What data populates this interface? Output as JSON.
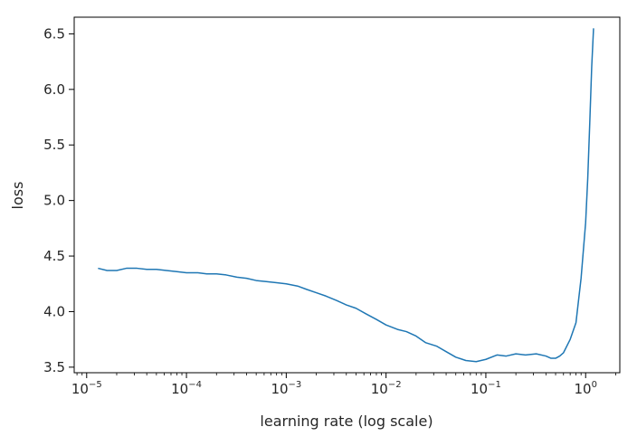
{
  "chart_data": {
    "type": "line",
    "xlabel": "learning rate (log scale)",
    "ylabel": "loss",
    "x_scale": "log",
    "xlim": [
      7.5e-06,
      2.2
    ],
    "ylim": [
      3.45,
      6.65
    ],
    "grid": false,
    "legend": "none",
    "x_ticks": [
      {
        "value": 1e-05,
        "base": "10",
        "exp": "−5"
      },
      {
        "value": 0.0001,
        "base": "10",
        "exp": "−4"
      },
      {
        "value": 0.001,
        "base": "10",
        "exp": "−3"
      },
      {
        "value": 0.01,
        "base": "10",
        "exp": "−2"
      },
      {
        "value": 0.1,
        "base": "10",
        "exp": "−1"
      },
      {
        "value": 1,
        "base": "10",
        "exp": "0"
      }
    ],
    "y_ticks": [
      "3.5",
      "4.0",
      "4.5",
      "5.0",
      "5.5",
      "6.0",
      "6.5"
    ],
    "series": [
      {
        "color": "#1f77b4",
        "x": [
          1.3e-05,
          1.6e-05,
          2e-05,
          2.5e-05,
          3.2e-05,
          4e-05,
          5e-05,
          6.3e-05,
          8e-05,
          0.0001,
          0.00013,
          0.00016,
          0.0002,
          0.00025,
          0.00032,
          0.0004,
          0.0005,
          0.00063,
          0.0008,
          0.001,
          0.0013,
          0.0016,
          0.002,
          0.0025,
          0.0032,
          0.004,
          0.005,
          0.0063,
          0.008,
          0.01,
          0.013,
          0.016,
          0.02,
          0.025,
          0.032,
          0.04,
          0.05,
          0.063,
          0.08,
          0.1,
          0.13,
          0.16,
          0.2,
          0.25,
          0.32,
          0.4,
          0.45,
          0.5,
          0.55,
          0.6,
          0.7,
          0.8,
          0.9,
          1.0,
          1.05,
          1.1,
          1.15,
          1.2
        ],
        "y": [
          4.39,
          4.37,
          4.37,
          4.39,
          4.39,
          4.38,
          4.38,
          4.37,
          4.36,
          4.35,
          4.35,
          4.34,
          4.34,
          4.33,
          4.31,
          4.3,
          4.28,
          4.27,
          4.26,
          4.25,
          4.23,
          4.2,
          4.17,
          4.14,
          4.1,
          4.06,
          4.03,
          3.98,
          3.93,
          3.88,
          3.84,
          3.82,
          3.78,
          3.72,
          3.69,
          3.64,
          3.59,
          3.56,
          3.55,
          3.57,
          3.61,
          3.6,
          3.62,
          3.61,
          3.62,
          3.6,
          3.58,
          3.58,
          3.6,
          3.63,
          3.75,
          3.9,
          4.3,
          4.8,
          5.2,
          5.7,
          6.2,
          6.55
        ]
      }
    ]
  }
}
